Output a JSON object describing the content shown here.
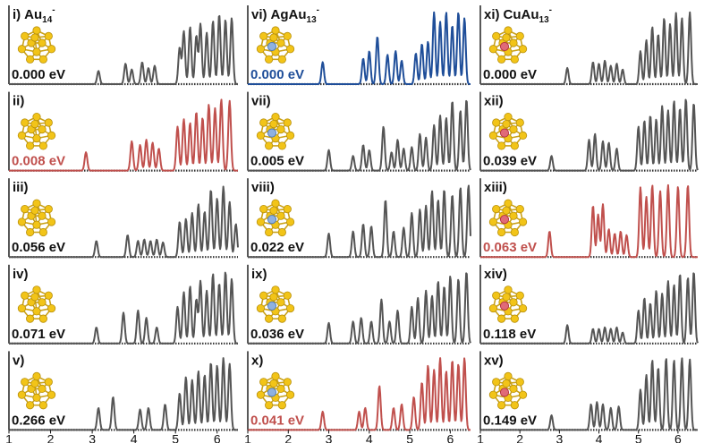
{
  "chart_data": {
    "type": "line",
    "x_axis": {
      "range": [
        1,
        6.5
      ],
      "ticks": [
        1,
        2,
        3,
        4,
        5,
        6
      ],
      "tick_labels": [
        "1",
        "2",
        "3",
        "4",
        "5",
        "6"
      ],
      "label": ""
    },
    "colors": {
      "default": "#555555",
      "highlight_blue": "#1f4e99",
      "highlight_red": "#c0504d"
    },
    "panels": [
      {
        "id": "i",
        "label": "i)",
        "formula": "Au",
        "sub": "14",
        "sup": "-",
        "energy": "0.000 eV",
        "cluster": "Au14",
        "dopant": null,
        "highlight": "black",
        "peaks": [
          [
            3.15,
            0.18
          ],
          [
            3.8,
            0.28
          ],
          [
            3.95,
            0.2
          ],
          [
            4.2,
            0.3
          ],
          [
            4.35,
            0.22
          ],
          [
            4.5,
            0.25
          ],
          [
            5.1,
            0.5
          ],
          [
            5.2,
            0.72
          ],
          [
            5.35,
            0.78
          ],
          [
            5.5,
            0.66
          ],
          [
            5.6,
            0.82
          ],
          [
            5.75,
            0.7
          ],
          [
            5.9,
            0.86
          ],
          [
            6.05,
            0.95
          ],
          [
            6.2,
            0.88
          ],
          [
            6.35,
            0.9
          ]
        ]
      },
      {
        "id": "ii",
        "label": "ii)",
        "formula": "",
        "sub": "",
        "sup": "",
        "energy": "0.008 eV",
        "cluster": "Au14",
        "dopant": null,
        "highlight": "red",
        "peaks": [
          [
            2.85,
            0.25
          ],
          [
            3.95,
            0.4
          ],
          [
            4.15,
            0.35
          ],
          [
            4.3,
            0.42
          ],
          [
            4.45,
            0.38
          ],
          [
            4.6,
            0.3
          ],
          [
            5.05,
            0.6
          ],
          [
            5.2,
            0.7
          ],
          [
            5.35,
            0.65
          ],
          [
            5.5,
            0.8
          ],
          [
            5.65,
            0.72
          ],
          [
            5.8,
            0.9
          ],
          [
            5.95,
            0.85
          ],
          [
            6.1,
            0.97
          ],
          [
            6.3,
            0.95
          ]
        ]
      },
      {
        "id": "iii",
        "label": "iii)",
        "formula": "",
        "sub": "",
        "sup": "",
        "energy": "0.056 eV",
        "cluster": "Au14",
        "dopant": null,
        "highlight": "black",
        "peaks": [
          [
            3.1,
            0.22
          ],
          [
            3.85,
            0.3
          ],
          [
            4.1,
            0.22
          ],
          [
            4.25,
            0.24
          ],
          [
            4.4,
            0.22
          ],
          [
            4.55,
            0.24
          ],
          [
            4.7,
            0.2
          ],
          [
            5.1,
            0.48
          ],
          [
            5.25,
            0.52
          ],
          [
            5.4,
            0.6
          ],
          [
            5.55,
            0.72
          ],
          [
            5.7,
            0.62
          ],
          [
            5.85,
            0.92
          ],
          [
            6.0,
            0.8
          ],
          [
            6.15,
            0.96
          ],
          [
            6.3,
            0.75
          ],
          [
            6.45,
            0.45
          ]
        ]
      },
      {
        "id": "iv",
        "label": "iv)",
        "formula": "",
        "sub": "",
        "sup": "",
        "energy": "0.071 eV",
        "cluster": "Au14",
        "dopant": null,
        "highlight": "black",
        "peaks": [
          [
            3.1,
            0.22
          ],
          [
            3.75,
            0.42
          ],
          [
            4.1,
            0.45
          ],
          [
            4.3,
            0.35
          ],
          [
            4.55,
            0.22
          ],
          [
            5.05,
            0.5
          ],
          [
            5.2,
            0.7
          ],
          [
            5.35,
            0.78
          ],
          [
            5.5,
            0.6
          ],
          [
            5.6,
            0.85
          ],
          [
            5.75,
            0.72
          ],
          [
            5.9,
            0.95
          ],
          [
            6.05,
            0.82
          ],
          [
            6.2,
            0.98
          ],
          [
            6.35,
            0.88
          ]
        ]
      },
      {
        "id": "v",
        "label": "v)",
        "formula": "",
        "sub": "",
        "sup": "",
        "energy": "0.266 eV",
        "cluster": "Au14",
        "dopant": null,
        "highlight": "black",
        "peaks": [
          [
            3.15,
            0.3
          ],
          [
            3.5,
            0.45
          ],
          [
            4.15,
            0.28
          ],
          [
            4.35,
            0.3
          ],
          [
            4.75,
            0.35
          ],
          [
            5.1,
            0.5
          ],
          [
            5.25,
            0.72
          ],
          [
            5.4,
            0.68
          ],
          [
            5.55,
            0.8
          ],
          [
            5.7,
            0.75
          ],
          [
            5.85,
            0.92
          ],
          [
            6.0,
            0.88
          ],
          [
            6.15,
            0.98
          ],
          [
            6.3,
            0.9
          ]
        ]
      },
      {
        "id": "vi",
        "label": "vi)",
        "formula": "AgAu",
        "sub": "13",
        "sup": "-",
        "energy": "0.000 eV",
        "cluster": "AgAu13",
        "dopant": "Ag",
        "highlight": "blue",
        "peaks": [
          [
            2.85,
            0.3
          ],
          [
            3.85,
            0.35
          ],
          [
            4.0,
            0.45
          ],
          [
            4.2,
            0.65
          ],
          [
            4.45,
            0.4
          ],
          [
            4.65,
            0.45
          ],
          [
            4.8,
            0.32
          ],
          [
            5.15,
            0.42
          ],
          [
            5.3,
            0.55
          ],
          [
            5.45,
            0.58
          ],
          [
            5.6,
            0.98
          ],
          [
            5.75,
            0.85
          ],
          [
            5.9,
            0.98
          ],
          [
            6.05,
            0.8
          ],
          [
            6.2,
            0.98
          ],
          [
            6.35,
            0.9
          ]
        ]
      },
      {
        "id": "vii",
        "label": "vii)",
        "formula": "",
        "sub": "",
        "sup": "",
        "energy": "0.005 eV",
        "cluster": "AgAu13",
        "dopant": "Ag",
        "highlight": "black",
        "peaks": [
          [
            3.0,
            0.28
          ],
          [
            3.6,
            0.2
          ],
          [
            3.85,
            0.35
          ],
          [
            4.0,
            0.28
          ],
          [
            4.35,
            0.6
          ],
          [
            4.55,
            0.25
          ],
          [
            4.7,
            0.42
          ],
          [
            4.85,
            0.3
          ],
          [
            5.05,
            0.32
          ],
          [
            5.25,
            0.5
          ],
          [
            5.4,
            0.45
          ],
          [
            5.6,
            0.62
          ],
          [
            5.75,
            0.75
          ],
          [
            5.9,
            0.72
          ],
          [
            6.05,
            0.95
          ],
          [
            6.25,
            0.82
          ],
          [
            6.4,
            0.97
          ]
        ]
      },
      {
        "id": "viii",
        "label": "viii)",
        "formula": "",
        "sub": "",
        "sup": "",
        "energy": "0.022 eV",
        "cluster": "AgAu13",
        "dopant": "Ag",
        "highlight": "black",
        "peaks": [
          [
            3.0,
            0.32
          ],
          [
            3.6,
            0.35
          ],
          [
            3.85,
            0.45
          ],
          [
            4.05,
            0.42
          ],
          [
            4.4,
            0.78
          ],
          [
            4.6,
            0.35
          ],
          [
            4.85,
            0.4
          ],
          [
            5.05,
            0.6
          ],
          [
            5.25,
            0.65
          ],
          [
            5.4,
            0.7
          ],
          [
            5.55,
            0.9
          ],
          [
            5.7,
            0.78
          ],
          [
            5.85,
            0.92
          ],
          [
            6.05,
            0.85
          ],
          [
            6.25,
            0.95
          ],
          [
            6.45,
            0.98
          ]
        ]
      },
      {
        "id": "ix",
        "label": "ix)",
        "formula": "",
        "sub": "",
        "sup": "",
        "energy": "0.036 eV",
        "cluster": "AgAu13",
        "dopant": "Ag",
        "highlight": "black",
        "peaks": [
          [
            3.0,
            0.28
          ],
          [
            3.6,
            0.3
          ],
          [
            3.8,
            0.35
          ],
          [
            4.05,
            0.3
          ],
          [
            4.3,
            0.6
          ],
          [
            4.5,
            0.3
          ],
          [
            4.7,
            0.45
          ],
          [
            5.05,
            0.5
          ],
          [
            5.2,
            0.62
          ],
          [
            5.4,
            0.72
          ],
          [
            5.55,
            0.65
          ],
          [
            5.7,
            0.85
          ],
          [
            5.85,
            0.78
          ],
          [
            6.0,
            0.92
          ],
          [
            6.2,
            0.88
          ],
          [
            6.4,
            0.98
          ]
        ]
      },
      {
        "id": "x",
        "label": "x)",
        "formula": "",
        "sub": "",
        "sup": "",
        "energy": "0.041 eV",
        "cluster": "AgAu13",
        "dopant": "Ag",
        "highlight": "red",
        "peaks": [
          [
            2.85,
            0.25
          ],
          [
            3.75,
            0.25
          ],
          [
            3.9,
            0.3
          ],
          [
            4.25,
            0.6
          ],
          [
            4.6,
            0.3
          ],
          [
            4.8,
            0.35
          ],
          [
            5.1,
            0.45
          ],
          [
            5.3,
            0.65
          ],
          [
            5.45,
            0.88
          ],
          [
            5.6,
            0.82
          ],
          [
            5.75,
            0.98
          ],
          [
            5.9,
            0.8
          ],
          [
            6.05,
            0.95
          ],
          [
            6.2,
            0.9
          ],
          [
            6.35,
            0.98
          ]
        ]
      },
      {
        "id": "xi",
        "label": "xi)",
        "formula": "CuAu",
        "sub": "13",
        "sup": "-",
        "energy": "0.000 eV",
        "cluster": "CuAu13",
        "dopant": "Cu",
        "highlight": "black",
        "peaks": [
          [
            3.2,
            0.22
          ],
          [
            3.85,
            0.3
          ],
          [
            4.0,
            0.28
          ],
          [
            4.15,
            0.32
          ],
          [
            4.3,
            0.25
          ],
          [
            4.45,
            0.28
          ],
          [
            4.6,
            0.2
          ],
          [
            5.05,
            0.45
          ],
          [
            5.2,
            0.6
          ],
          [
            5.35,
            0.78
          ],
          [
            5.5,
            0.68
          ],
          [
            5.65,
            0.9
          ],
          [
            5.8,
            0.82
          ],
          [
            5.95,
            0.97
          ],
          [
            6.1,
            0.9
          ],
          [
            6.3,
            0.98
          ]
        ]
      },
      {
        "id": "xii",
        "label": "xii)",
        "formula": "",
        "sub": "",
        "sup": "",
        "energy": "0.039 eV",
        "cluster": "CuAu13",
        "dopant": "Cu",
        "highlight": "black",
        "peaks": [
          [
            2.8,
            0.2
          ],
          [
            3.75,
            0.42
          ],
          [
            3.9,
            0.5
          ],
          [
            4.1,
            0.4
          ],
          [
            4.25,
            0.38
          ],
          [
            4.45,
            0.3
          ],
          [
            5.0,
            0.6
          ],
          [
            5.15,
            0.68
          ],
          [
            5.3,
            0.75
          ],
          [
            5.45,
            0.7
          ],
          [
            5.6,
            0.88
          ],
          [
            5.75,
            0.82
          ],
          [
            5.9,
            0.95
          ],
          [
            6.05,
            0.85
          ],
          [
            6.2,
            0.98
          ],
          [
            6.4,
            0.92
          ]
        ]
      },
      {
        "id": "xiii",
        "label": "xiii)",
        "formula": "",
        "sub": "",
        "sup": "",
        "energy": "0.063 eV",
        "cluster": "CuAu13",
        "dopant": "Cu",
        "highlight": "red",
        "peaks": [
          [
            2.75,
            0.35
          ],
          [
            3.85,
            0.7
          ],
          [
            3.98,
            0.58
          ],
          [
            4.1,
            0.72
          ],
          [
            4.25,
            0.38
          ],
          [
            4.4,
            0.32
          ],
          [
            4.55,
            0.35
          ],
          [
            4.7,
            0.3
          ],
          [
            5.05,
            0.95
          ],
          [
            5.2,
            0.82
          ],
          [
            5.35,
            0.98
          ],
          [
            5.55,
            0.9
          ],
          [
            5.75,
            0.98
          ],
          [
            6.0,
            0.96
          ],
          [
            6.25,
            0.98
          ]
        ]
      },
      {
        "id": "xiv",
        "label": "xiv)",
        "formula": "",
        "sub": "",
        "sup": "",
        "energy": "0.118 eV",
        "cluster": "CuAu13",
        "dopant": "Cu",
        "highlight": "black",
        "peaks": [
          [
            3.2,
            0.25
          ],
          [
            3.85,
            0.2
          ],
          [
            4.0,
            0.2
          ],
          [
            4.15,
            0.22
          ],
          [
            4.3,
            0.2
          ],
          [
            4.45,
            0.22
          ],
          [
            4.6,
            0.15
          ],
          [
            5.0,
            0.45
          ],
          [
            5.15,
            0.62
          ],
          [
            5.3,
            0.55
          ],
          [
            5.45,
            0.72
          ],
          [
            5.6,
            0.68
          ],
          [
            5.75,
            0.85
          ],
          [
            5.9,
            0.8
          ],
          [
            6.05,
            0.95
          ],
          [
            6.25,
            0.9
          ],
          [
            6.4,
            0.98
          ]
        ]
      },
      {
        "id": "xv",
        "label": "xv)",
        "formula": "",
        "sub": "",
        "sup": "",
        "energy": "0.149 eV",
        "cluster": "CuAu13",
        "dopant": "Cu",
        "highlight": "black",
        "peaks": [
          [
            2.8,
            0.2
          ],
          [
            3.8,
            0.35
          ],
          [
            3.95,
            0.38
          ],
          [
            4.1,
            0.35
          ],
          [
            4.3,
            0.3
          ],
          [
            4.5,
            0.32
          ],
          [
            5.05,
            0.55
          ],
          [
            5.2,
            0.75
          ],
          [
            5.35,
            0.95
          ],
          [
            5.5,
            0.85
          ],
          [
            5.7,
            0.98
          ],
          [
            5.9,
            0.95
          ],
          [
            6.1,
            0.98
          ],
          [
            6.3,
            0.96
          ]
        ]
      }
    ]
  }
}
